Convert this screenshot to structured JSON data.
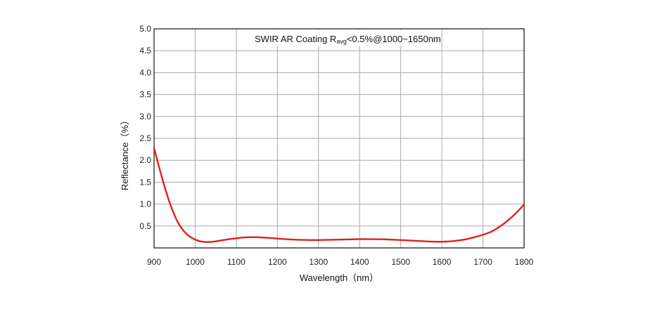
{
  "chart_data": {
    "type": "line",
    "title_main": "SWIR AR Coating R",
    "title_sub": "avg",
    "title_rest": "<0.5%@1000~1650nm",
    "xlabel": "Wavelength（nm）",
    "ylabel": "Reflectance（%）",
    "xlim": [
      900,
      1800
    ],
    "ylim": [
      0,
      5.0
    ],
    "xticks": [
      900,
      1000,
      1100,
      1200,
      1300,
      1400,
      1500,
      1600,
      1700,
      1800
    ],
    "xtick_labels": [
      "900",
      "1000",
      "1100",
      "1200",
      "1300",
      "1400",
      "1500",
      "1600",
      "1700",
      "1800"
    ],
    "yticks": [
      0.5,
      1.0,
      1.5,
      2.0,
      2.5,
      3.0,
      3.5,
      4.0,
      4.5,
      5.0
    ],
    "ytick_labels": [
      "0.5",
      "1.0",
      "1.5",
      "2.0",
      "2.5",
      "3.0",
      "3.5",
      "4.0",
      "4.5",
      "5.0"
    ],
    "grid": true,
    "series": [
      {
        "color": "#e0201e",
        "x": [
          900,
          910,
          920,
          930,
          940,
          950,
          960,
          970,
          980,
          990,
          1000,
          1010,
          1020,
          1030,
          1040,
          1050,
          1060,
          1080,
          1100,
          1120,
          1140,
          1160,
          1180,
          1200,
          1220,
          1240,
          1260,
          1280,
          1300,
          1320,
          1340,
          1360,
          1380,
          1400,
          1420,
          1440,
          1460,
          1480,
          1500,
          1520,
          1540,
          1560,
          1580,
          1600,
          1620,
          1640,
          1660,
          1680,
          1700,
          1720,
          1740,
          1760,
          1780,
          1800
        ],
        "y": [
          2.28,
          1.92,
          1.58,
          1.26,
          0.98,
          0.74,
          0.55,
          0.41,
          0.31,
          0.24,
          0.19,
          0.155,
          0.14,
          0.135,
          0.138,
          0.15,
          0.165,
          0.195,
          0.22,
          0.24,
          0.245,
          0.24,
          0.228,
          0.214,
          0.2,
          0.19,
          0.183,
          0.18,
          0.18,
          0.183,
          0.187,
          0.192,
          0.196,
          0.2,
          0.2,
          0.198,
          0.195,
          0.188,
          0.18,
          0.17,
          0.16,
          0.15,
          0.143,
          0.142,
          0.15,
          0.17,
          0.2,
          0.245,
          0.3,
          0.37,
          0.48,
          0.62,
          0.79,
          0.99
        ]
      }
    ]
  }
}
